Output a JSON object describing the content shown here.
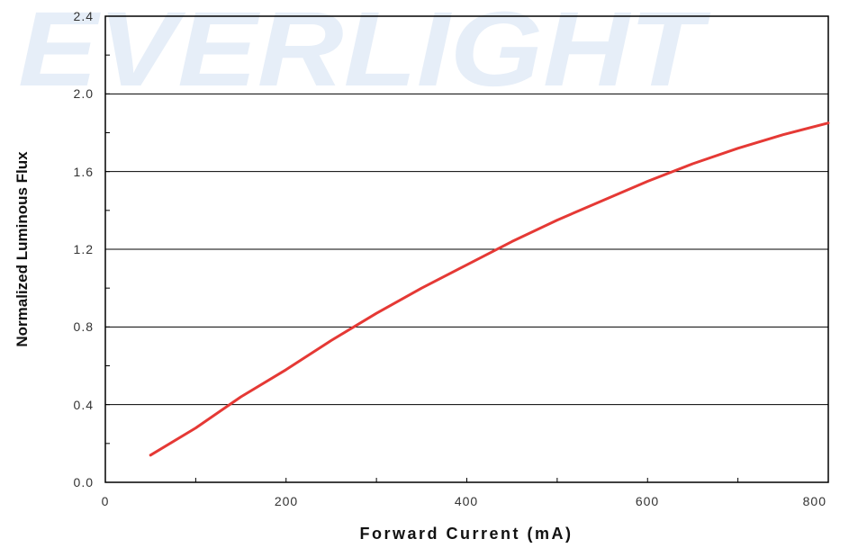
{
  "watermark": "EVERLIGHT",
  "chart_data": {
    "type": "line",
    "xlabel": "Forward Current (mA)",
    "ylabel": "Normalized Luminous Flux",
    "xlim": [
      0,
      800
    ],
    "ylim": [
      0,
      2.4
    ],
    "x_ticks": [
      "0",
      "200",
      "400",
      "600",
      "800"
    ],
    "y_ticks": [
      "0.0",
      "0.4",
      "0.8",
      "1.2",
      "1.6",
      "2.0",
      "2.4"
    ],
    "grid": "horizontal",
    "colors": {
      "series": "#e53935",
      "grid": "#000000",
      "watermark": "#e6eef8"
    },
    "series": [
      {
        "x": [
          50,
          100,
          150,
          200,
          250,
          300,
          350,
          400,
          450,
          500,
          550,
          600,
          650,
          700,
          750,
          800
        ],
        "y": [
          0.14,
          0.28,
          0.44,
          0.58,
          0.73,
          0.87,
          1.0,
          1.12,
          1.24,
          1.35,
          1.45,
          1.55,
          1.64,
          1.72,
          1.79,
          1.85
        ]
      }
    ]
  }
}
